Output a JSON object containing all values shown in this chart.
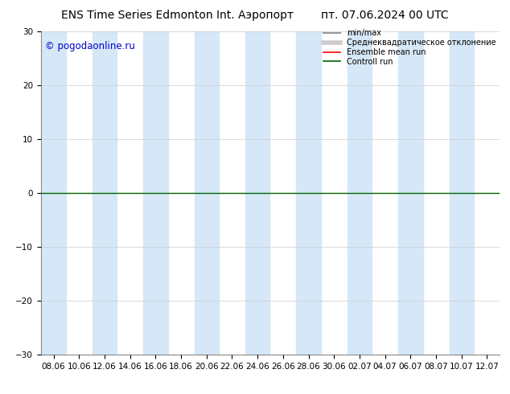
{
  "title_left": "ENS Time Series Edmonton Int. Аэропорт",
  "title_right": "пт. 07.06.2024 00 UTC",
  "watermark": "© pogodaonline.ru",
  "watermark_color": "#0000cc",
  "ylim": [
    -30,
    30
  ],
  "yticks": [
    -30,
    -20,
    -10,
    0,
    10,
    20,
    30
  ],
  "xtick_labels": [
    "08.06",
    "10.06",
    "12.06",
    "14.06",
    "16.06",
    "18.06",
    "20.06",
    "22.06",
    "24.06",
    "26.06",
    "28.06",
    "30.06",
    "02.07",
    "04.07",
    "06.07",
    "08.07",
    "10.07",
    "12.07"
  ],
  "background_color": "#ffffff",
  "plot_bg_color": "#ffffff",
  "shaded_band_color": "#d6e8f7",
  "shaded_band_alpha": 1.0,
  "shaded_columns": [
    0,
    2,
    4,
    6,
    8,
    10,
    12,
    14,
    16
  ],
  "control_run_value": 0,
  "control_run_color": "#006400",
  "ensemble_mean_color": "#ff0000",
  "min_max_color": "#999999",
  "std_color": "#cccccc",
  "legend_labels": [
    "min/max",
    "Среднеквадратическое отклонение",
    "Ensemble mean run",
    "Controll run"
  ],
  "grid_color": "#cccccc",
  "title_fontsize": 10,
  "tick_fontsize": 7.5,
  "watermark_fontsize": 8.5,
  "fig_width": 6.34,
  "fig_height": 4.9,
  "dpi": 100
}
